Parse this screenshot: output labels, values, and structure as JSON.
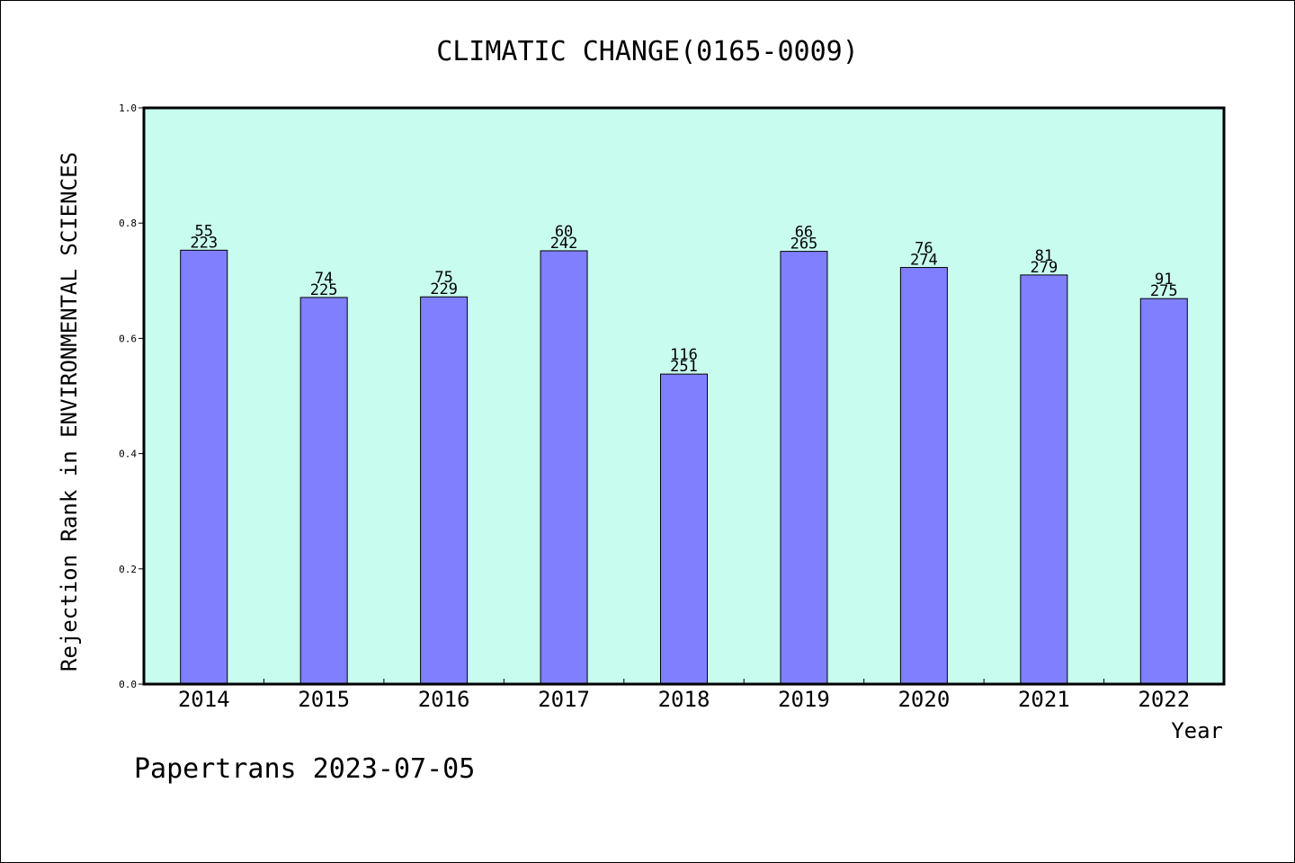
{
  "footer_text": "Papertrans 2023-07-05",
  "colors": {
    "plot_background": "#c8fcee",
    "bar_fill": "#8080ff",
    "bar_stroke": "#000000",
    "frame": "#000000"
  },
  "chart_data": {
    "type": "bar",
    "title": "CLIMATIC CHANGE(0165-0009)",
    "xlabel": "Year",
    "ylabel": "Rejection Rank in ENVIRONMENTAL SCIENCES",
    "ylim": [
      0,
      1
    ],
    "yticks": [
      "0.0",
      "0.2",
      "0.4",
      "0.6",
      "0.8",
      "1.0"
    ],
    "grid": false,
    "categories": [
      "2014",
      "2015",
      "2016",
      "2017",
      "2018",
      "2019",
      "2020",
      "2021",
      "2022"
    ],
    "values": [
      0.753,
      0.671,
      0.672,
      0.752,
      0.538,
      0.751,
      0.723,
      0.71,
      0.669
    ],
    "rank_labels": [
      "55",
      "74",
      "75",
      "60",
      "116",
      "66",
      "76",
      "81",
      "91"
    ],
    "total_labels": [
      "223",
      "225",
      "229",
      "242",
      "251",
      "265",
      "274",
      "279",
      "275"
    ]
  }
}
